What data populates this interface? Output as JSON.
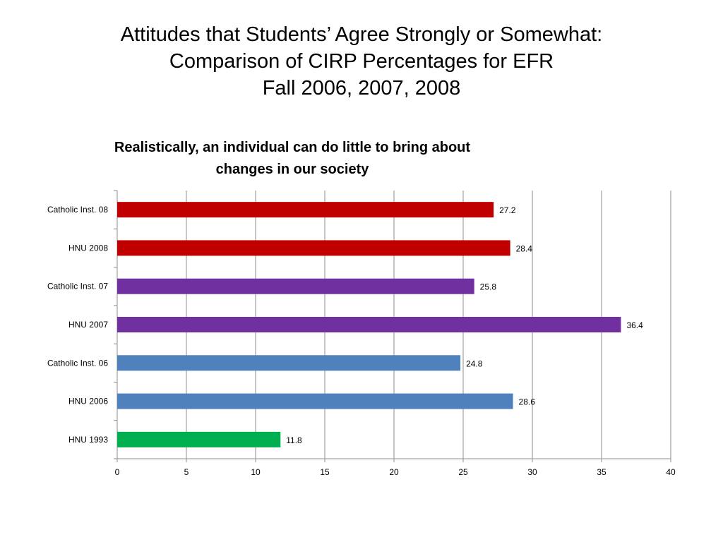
{
  "slide": {
    "title_lines": [
      "Attitudes that Students’ Agree Strongly or Somewhat:",
      "Comparison of CIRP Percentages for EFR",
      "Fall 2006, 2007, 2008"
    ]
  },
  "chart_data": {
    "type": "bar",
    "orientation": "horizontal",
    "title_lines": [
      "Realistically, an individual can do little to bring about",
      "changes in our society"
    ],
    "categories": [
      "Catholic Inst. 08",
      "HNU 2008",
      "Catholic Inst. 07",
      "HNU 2007",
      "Catholic Inst. 06",
      "HNU 2006",
      "HNU 1993"
    ],
    "values": [
      27.2,
      28.4,
      25.8,
      36.4,
      24.8,
      28.6,
      11.8
    ],
    "value_labels": [
      "27.2",
      "28.4",
      "25.8",
      "36.4",
      "24.8",
      "28.6",
      "11.8"
    ],
    "colors": [
      "#C00000",
      "#C00000",
      "#7030A0",
      "#7030A0",
      "#4F81BD",
      "#4F81BD",
      "#00B050"
    ],
    "xlim": [
      0,
      40
    ],
    "xticks": [
      0,
      5,
      10,
      15,
      20,
      25,
      30,
      35,
      40
    ],
    "grid": "vertical",
    "legend": "none"
  }
}
